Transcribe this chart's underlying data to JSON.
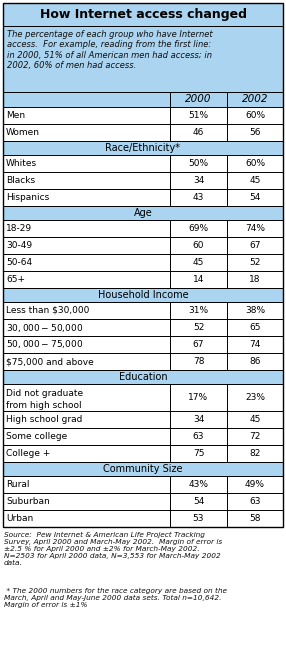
{
  "title": "How Internet access changed",
  "subtitle": "The percentage of each group who have Internet\naccess.  For example, reading from the first line:\nin 2000, 51% of all American men had access; in\n2002, 60% of men had access.",
  "col_headers": [
    "2000",
    "2002"
  ],
  "sections": [
    {
      "header": null,
      "rows": [
        {
          "label": "Men",
          "v2000": "51%",
          "v2002": "60%"
        },
        {
          "label": "Women",
          "v2000": "46",
          "v2002": "56"
        }
      ]
    },
    {
      "header": "Race/Ethnicity*",
      "rows": [
        {
          "label": "Whites",
          "v2000": "50%",
          "v2002": "60%"
        },
        {
          "label": "Blacks",
          "v2000": "34",
          "v2002": "45"
        },
        {
          "label": "Hispanics",
          "v2000": "43",
          "v2002": "54"
        }
      ]
    },
    {
      "header": "Age",
      "rows": [
        {
          "label": "18-29",
          "v2000": "69%",
          "v2002": "74%"
        },
        {
          "label": "30-49",
          "v2000": "60",
          "v2002": "67"
        },
        {
          "label": "50-64",
          "v2000": "45",
          "v2002": "52"
        },
        {
          "label": "65+",
          "v2000": "14",
          "v2002": "18"
        }
      ]
    },
    {
      "header": "Household Income",
      "rows": [
        {
          "label": "Less than $30,000",
          "v2000": "31%",
          "v2002": "38%"
        },
        {
          "label": "$30,000-$50,000",
          "v2000": "52",
          "v2002": "65"
        },
        {
          "label": "$50,000-$75,000",
          "v2000": "67",
          "v2002": "74"
        },
        {
          "label": "$75,000 and above",
          "v2000": "78",
          "v2002": "86"
        }
      ]
    },
    {
      "header": "Education",
      "rows": [
        {
          "label": "Did not graduate\nfrom high school",
          "v2000": "17%",
          "v2002": "23%"
        },
        {
          "label": "High school grad",
          "v2000": "34",
          "v2002": "45"
        },
        {
          "label": "Some college",
          "v2000": "63",
          "v2002": "72"
        },
        {
          "label": "College +",
          "v2000": "75",
          "v2002": "82"
        }
      ]
    },
    {
      "header": "Community Size",
      "rows": [
        {
          "label": "Rural",
          "v2000": "43%",
          "v2002": "49%"
        },
        {
          "label": "Suburban",
          "v2000": "54",
          "v2002": "63"
        },
        {
          "label": "Urban",
          "v2000": "53",
          "v2002": "58"
        }
      ]
    }
  ],
  "footnote1": "Source:  Pew Internet & American Life Project Tracking\nSurvey, April 2000 and March-May 2002.  Margin of error is\n±2.5 % for April 2000 and ±2% for March-May 2002.\nN=2503 for April 2000 data, N=3,553 for March-May 2002\ndata.",
  "footnote2": " * The 2000 numbers for the race category are based on the\nMarch, April and May-June 2000 data sets. Total n=10,642.\nMargin of error is ±1%",
  "title_bg": "#aad4f0",
  "section_header_bg": "#aad4f0",
  "col_header_bg": "#aad4f0",
  "row_bg": "#ffffff",
  "border_color": "#000000"
}
